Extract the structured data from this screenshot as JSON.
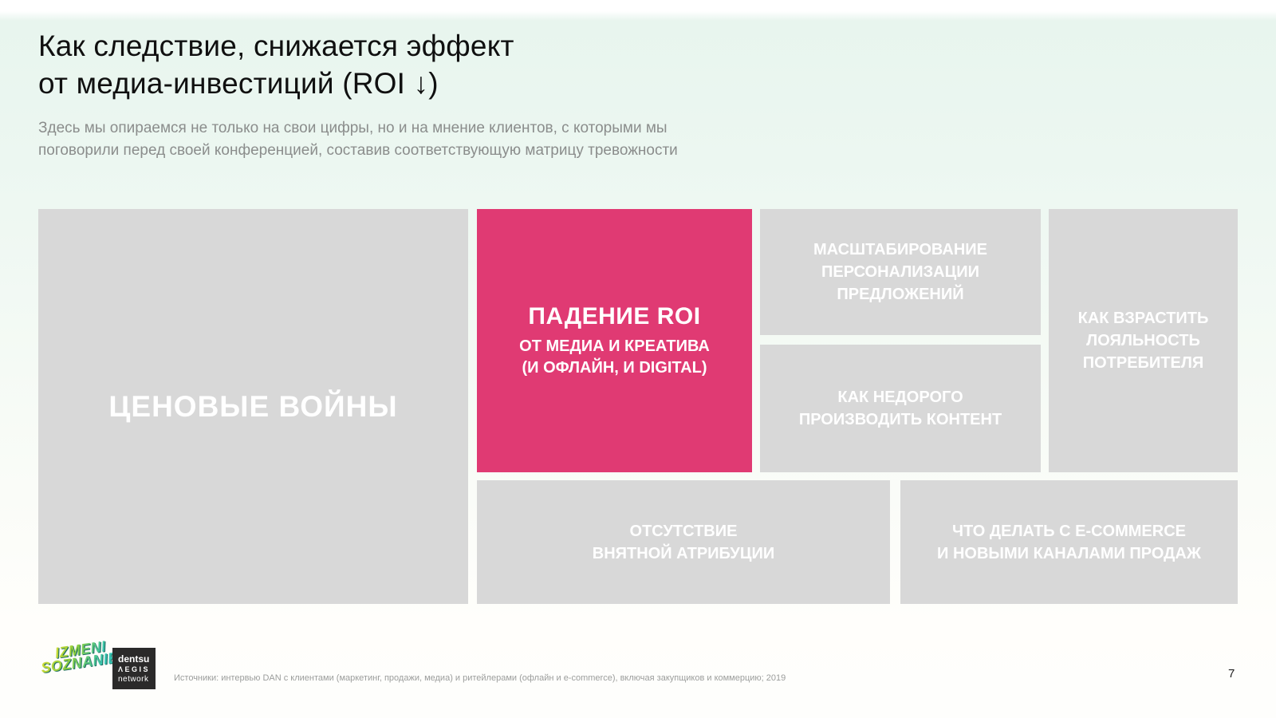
{
  "slide": {
    "title_line1": "Как следствие, снижается эффект",
    "title_line2": "от медиа-инвестиций (ROI ↓)",
    "subtitle_line1": "Здесь мы опираемся не только на свои цифры, но и на мнение клиентов, с которыми мы",
    "subtitle_line2": "поговорили перед своей конференцией, составив соответствующую матрицу тревожности",
    "source": "Источники: интервью DAN с клиентами (маркетинг, продажи, медиа) и ритейлерами (офлайн и e-commerce), включая закупщиков и коммерцию; 2019",
    "page_number": "7"
  },
  "matrix": {
    "price_wars": {
      "label": "ЦЕНОВЫЕ ВОЙНЫ"
    },
    "roi_drop": {
      "title": "ПАДЕНИЕ ROI",
      "line1": "ОТ МЕДИА И КРЕАТИВА",
      "line2": "(И ОФЛАЙН, И DIGITAL)"
    },
    "personalization": {
      "line1": "МАСШТАБИРОВАНИЕ",
      "line2": "ПЕРСОНАЛИЗАЦИИ",
      "line3": "ПРЕДЛОЖЕНИЙ"
    },
    "loyalty": {
      "line1": "КАК ВЗРАСТИТЬ",
      "line2": "ЛОЯЛЬНОСТЬ",
      "line3": "ПОТРЕБИТЕЛЯ"
    },
    "content_cost": {
      "line1": "КАК НЕДОРОГО",
      "line2": "ПРОИЗВОДИТЬ КОНТЕНТ"
    },
    "attribution": {
      "line1": "ОТСУТСТВИЕ",
      "line2": "ВНЯТНОЙ АТРИБУЦИИ"
    },
    "ecommerce": {
      "line1": "ЧТО ДЕЛАТЬ С E-COMMERCE",
      "line2": "И НОВЫМИ КАНАЛАМИ ПРОДАЖ"
    }
  },
  "logos": {
    "izmeni_line1": "IZMENI",
    "izmeni_line2": "SOZNANIE",
    "dentsu_line1": "dentsu",
    "dentsu_line2": "ΛEGIS",
    "dentsu_line3": "network"
  },
  "colors": {
    "accent_pink": "#e03a73",
    "cell_gray": "#d8d8d8",
    "background_mint": "#e8f5ee"
  }
}
